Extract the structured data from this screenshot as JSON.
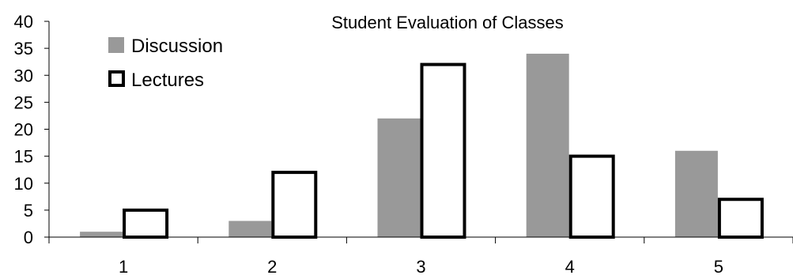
{
  "chart_data": {
    "type": "bar",
    "title": "Student Evaluation of Classes",
    "xlabel": "",
    "ylabel": "",
    "categories": [
      "1",
      "2",
      "3",
      "4",
      "5"
    ],
    "series": [
      {
        "name": "Discussion",
        "values": [
          1,
          3,
          22,
          34,
          16
        ],
        "color": "#999999",
        "style": "filled"
      },
      {
        "name": "Lectures",
        "values": [
          5,
          12,
          32,
          15,
          7
        ],
        "color": "#000000",
        "style": "outline"
      }
    ],
    "ylim": [
      0,
      40
    ],
    "yticks": [
      "0",
      "5",
      "10",
      "15",
      "20",
      "25",
      "30",
      "35",
      "40"
    ],
    "grid": false,
    "legend_position": "top-left"
  }
}
